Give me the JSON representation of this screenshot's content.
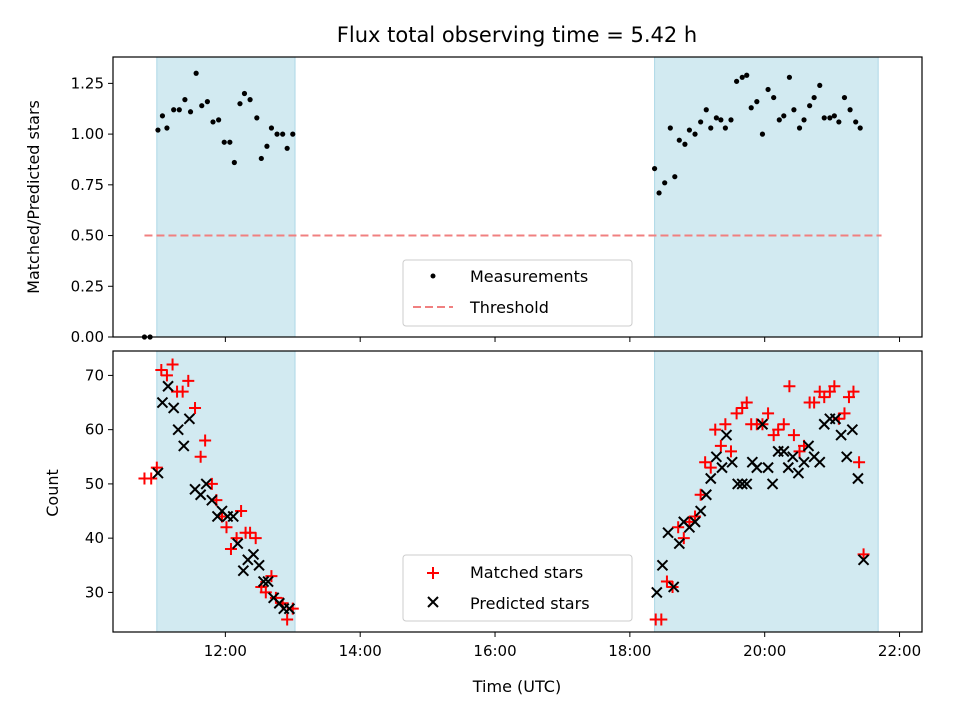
{
  "chart_data": [
    {
      "type": "scatter",
      "title": "Flux total observing time = 5.42 h",
      "xlabel": "",
      "ylabel": "Matched/Predicted stars",
      "xlim": [
        "10:20",
        "22:20"
      ],
      "ylim": [
        0,
        1.38
      ],
      "yticks": [
        "0.00",
        "0.25",
        "0.50",
        "0.75",
        "1.00",
        "1.25"
      ],
      "shaded_intervals": [
        [
          "10:59",
          "13:02"
        ],
        [
          "18:22",
          "21:41"
        ]
      ],
      "colors": {
        "shade": "#add8e6",
        "measurements": "#000000",
        "threshold": "#f08080"
      },
      "series": [
        {
          "name": "Measurements",
          "marker": "dot",
          "points": [
            [
              "10:48",
              0.0
            ],
            [
              "10:53",
              0.0
            ],
            [
              "11:00",
              1.02
            ],
            [
              "11:04",
              1.09
            ],
            [
              "11:08",
              1.03
            ],
            [
              "11:14",
              1.12
            ],
            [
              "11:19",
              1.12
            ],
            [
              "11:24",
              1.17
            ],
            [
              "11:29",
              1.11
            ],
            [
              "11:34",
              1.3
            ],
            [
              "11:39",
              1.14
            ],
            [
              "11:44",
              1.16
            ],
            [
              "11:49",
              1.06
            ],
            [
              "11:54",
              1.07
            ],
            [
              "11:59",
              0.96
            ],
            [
              "12:04",
              0.96
            ],
            [
              "12:08",
              0.86
            ],
            [
              "12:13",
              1.15
            ],
            [
              "12:17",
              1.2
            ],
            [
              "12:22",
              1.17
            ],
            [
              "12:28",
              1.08
            ],
            [
              "12:32",
              0.88
            ],
            [
              "12:37",
              0.94
            ],
            [
              "12:41",
              1.03
            ],
            [
              "12:46",
              1.0
            ],
            [
              "12:51",
              1.0
            ],
            [
              "12:55",
              0.93
            ],
            [
              "13:00",
              1.0
            ],
            [
              "18:22",
              0.83
            ],
            [
              "18:26",
              0.71
            ],
            [
              "18:31",
              0.76
            ],
            [
              "18:36",
              1.03
            ],
            [
              "18:40",
              0.79
            ],
            [
              "18:44",
              0.97
            ],
            [
              "18:49",
              0.95
            ],
            [
              "18:53",
              1.02
            ],
            [
              "18:58",
              1.0
            ],
            [
              "19:03",
              1.06
            ],
            [
              "19:08",
              1.12
            ],
            [
              "19:12",
              1.03
            ],
            [
              "19:17",
              1.08
            ],
            [
              "19:21",
              1.07
            ],
            [
              "19:25",
              1.03
            ],
            [
              "19:30",
              1.07
            ],
            [
              "19:35",
              1.26
            ],
            [
              "19:40",
              1.28
            ],
            [
              "19:44",
              1.29
            ],
            [
              "19:48",
              1.13
            ],
            [
              "19:53",
              1.16
            ],
            [
              "19:58",
              1.0
            ],
            [
              "20:03",
              1.22
            ],
            [
              "20:08",
              1.18
            ],
            [
              "20:13",
              1.07
            ],
            [
              "20:17",
              1.09
            ],
            [
              "20:22",
              1.28
            ],
            [
              "20:26",
              1.12
            ],
            [
              "20:31",
              1.03
            ],
            [
              "20:35",
              1.07
            ],
            [
              "20:40",
              1.14
            ],
            [
              "20:44",
              1.18
            ],
            [
              "20:49",
              1.24
            ],
            [
              "20:53",
              1.08
            ],
            [
              "20:58",
              1.08
            ],
            [
              "21:02",
              1.09
            ],
            [
              "21:06",
              1.06
            ],
            [
              "21:11",
              1.18
            ],
            [
              "21:16",
              1.12
            ],
            [
              "21:21",
              1.06
            ],
            [
              "21:25",
              1.03
            ]
          ]
        },
        {
          "name": "Threshold",
          "style": "dashed",
          "points": [
            [
              "10:48",
              0.5
            ],
            [
              "21:44",
              0.5
            ]
          ]
        }
      ],
      "legend": {
        "position": "lower-center",
        "entries": [
          "Measurements",
          "Threshold"
        ]
      }
    },
    {
      "type": "scatter",
      "xlabel": "Time (UTC)",
      "ylabel": "Count",
      "xlim": [
        "10:20",
        "22:20"
      ],
      "ylim": [
        22.7,
        74.5
      ],
      "xticks": [
        "12:00",
        "14:00",
        "16:00",
        "18:00",
        "20:00",
        "22:00"
      ],
      "yticks": [
        "30",
        "40",
        "50",
        "60",
        "70"
      ],
      "shaded_intervals": [
        [
          "10:59",
          "13:02"
        ],
        [
          "18:22",
          "21:41"
        ]
      ],
      "colors": {
        "shade": "#add8e6",
        "matched": "#ff0000",
        "predicted": "#000000"
      },
      "series": [
        {
          "name": "Matched stars",
          "marker": "plus",
          "points": [
            [
              "10:48",
              51
            ],
            [
              "10:54",
              51
            ],
            [
              "10:59",
              53
            ],
            [
              "11:03",
              71
            ],
            [
              "11:08",
              70
            ],
            [
              "11:13",
              72
            ],
            [
              "11:17",
              67
            ],
            [
              "11:22",
              67
            ],
            [
              "11:27",
              69
            ],
            [
              "11:33",
              64
            ],
            [
              "11:38",
              55
            ],
            [
              "11:42",
              58
            ],
            [
              "11:48",
              50
            ],
            [
              "11:52",
              47
            ],
            [
              "11:57",
              44
            ],
            [
              "12:01",
              42
            ],
            [
              "12:05",
              38
            ],
            [
              "12:10",
              40
            ],
            [
              "12:14",
              45
            ],
            [
              "12:18",
              41
            ],
            [
              "12:22",
              41
            ],
            [
              "12:27",
              40
            ],
            [
              "12:32",
              31
            ],
            [
              "12:36",
              30
            ],
            [
              "12:41",
              33
            ],
            [
              "12:45",
              29
            ],
            [
              "12:51",
              28
            ],
            [
              "12:55",
              25
            ],
            [
              "13:00",
              27
            ],
            [
              "18:23",
              25
            ],
            [
              "18:28",
              25
            ],
            [
              "18:33",
              32
            ],
            [
              "18:38",
              31
            ],
            [
              "18:43",
              42
            ],
            [
              "18:48",
              40
            ],
            [
              "18:53",
              43
            ],
            [
              "18:58",
              44
            ],
            [
              "19:03",
              48
            ],
            [
              "19:07",
              54
            ],
            [
              "19:12",
              53
            ],
            [
              "19:16",
              60
            ],
            [
              "19:21",
              57
            ],
            [
              "19:25",
              61
            ],
            [
              "19:30",
              56
            ],
            [
              "19:35",
              63
            ],
            [
              "19:40",
              64
            ],
            [
              "19:44",
              65
            ],
            [
              "19:48",
              61
            ],
            [
              "19:53",
              61
            ],
            [
              "19:58",
              61
            ],
            [
              "20:03",
              63
            ],
            [
              "20:08",
              59
            ],
            [
              "20:12",
              60
            ],
            [
              "20:17",
              61
            ],
            [
              "20:22",
              68
            ],
            [
              "20:26",
              59
            ],
            [
              "20:31",
              56
            ],
            [
              "20:35",
              57
            ],
            [
              "20:40",
              65
            ],
            [
              "20:44",
              65
            ],
            [
              "20:49",
              67
            ],
            [
              "20:53",
              66
            ],
            [
              "20:58",
              67
            ],
            [
              "21:02",
              68
            ],
            [
              "21:06",
              62
            ],
            [
              "21:11",
              63
            ],
            [
              "21:15",
              66
            ],
            [
              "21:19",
              67
            ],
            [
              "21:24",
              54
            ],
            [
              "21:28",
              37
            ]
          ]
        },
        {
          "name": "Predicted stars",
          "marker": "x",
          "points": [
            [
              "11:00",
              52
            ],
            [
              "11:04",
              65
            ],
            [
              "11:09",
              68
            ],
            [
              "11:14",
              64
            ],
            [
              "11:18",
              60
            ],
            [
              "11:23",
              57
            ],
            [
              "11:28",
              62
            ],
            [
              "11:33",
              49
            ],
            [
              "11:38",
              48
            ],
            [
              "11:43",
              50
            ],
            [
              "11:48",
              47
            ],
            [
              "11:53",
              44
            ],
            [
              "11:57",
              45
            ],
            [
              "12:02",
              44
            ],
            [
              "12:07",
              44
            ],
            [
              "12:11",
              39
            ],
            [
              "12:16",
              34
            ],
            [
              "12:20",
              36
            ],
            [
              "12:25",
              37
            ],
            [
              "12:30",
              35
            ],
            [
              "12:34",
              32
            ],
            [
              "12:38",
              32
            ],
            [
              "12:43",
              29
            ],
            [
              "12:48",
              28
            ],
            [
              "12:52",
              27
            ],
            [
              "12:57",
              27
            ],
            [
              "18:24",
              30
            ],
            [
              "18:29",
              35
            ],
            [
              "18:34",
              41
            ],
            [
              "18:39",
              31
            ],
            [
              "18:44",
              39
            ],
            [
              "18:48",
              43
            ],
            [
              "18:53",
              42
            ],
            [
              "18:58",
              43
            ],
            [
              "19:03",
              45
            ],
            [
              "19:08",
              48
            ],
            [
              "19:12",
              51
            ],
            [
              "19:17",
              55
            ],
            [
              "19:22",
              53
            ],
            [
              "19:26",
              59
            ],
            [
              "19:31",
              54
            ],
            [
              "19:36",
              50
            ],
            [
              "19:40",
              50
            ],
            [
              "19:44",
              50
            ],
            [
              "19:49",
              54
            ],
            [
              "19:53",
              53
            ],
            [
              "19:58",
              61
            ],
            [
              "20:03",
              53
            ],
            [
              "20:07",
              50
            ],
            [
              "20:12",
              56
            ],
            [
              "20:17",
              56
            ],
            [
              "20:21",
              53
            ],
            [
              "20:25",
              55
            ],
            [
              "20:30",
              52
            ],
            [
              "20:35",
              54
            ],
            [
              "20:39",
              57
            ],
            [
              "20:44",
              55
            ],
            [
              "20:49",
              54
            ],
            [
              "20:53",
              61
            ],
            [
              "20:58",
              62
            ],
            [
              "21:03",
              62
            ],
            [
              "21:08",
              59
            ],
            [
              "21:13",
              55
            ],
            [
              "21:18",
              60
            ],
            [
              "21:23",
              51
            ],
            [
              "21:28",
              36
            ]
          ]
        }
      ],
      "legend": {
        "position": "lower-center",
        "entries": [
          "Matched stars",
          "Predicted stars"
        ]
      }
    }
  ]
}
